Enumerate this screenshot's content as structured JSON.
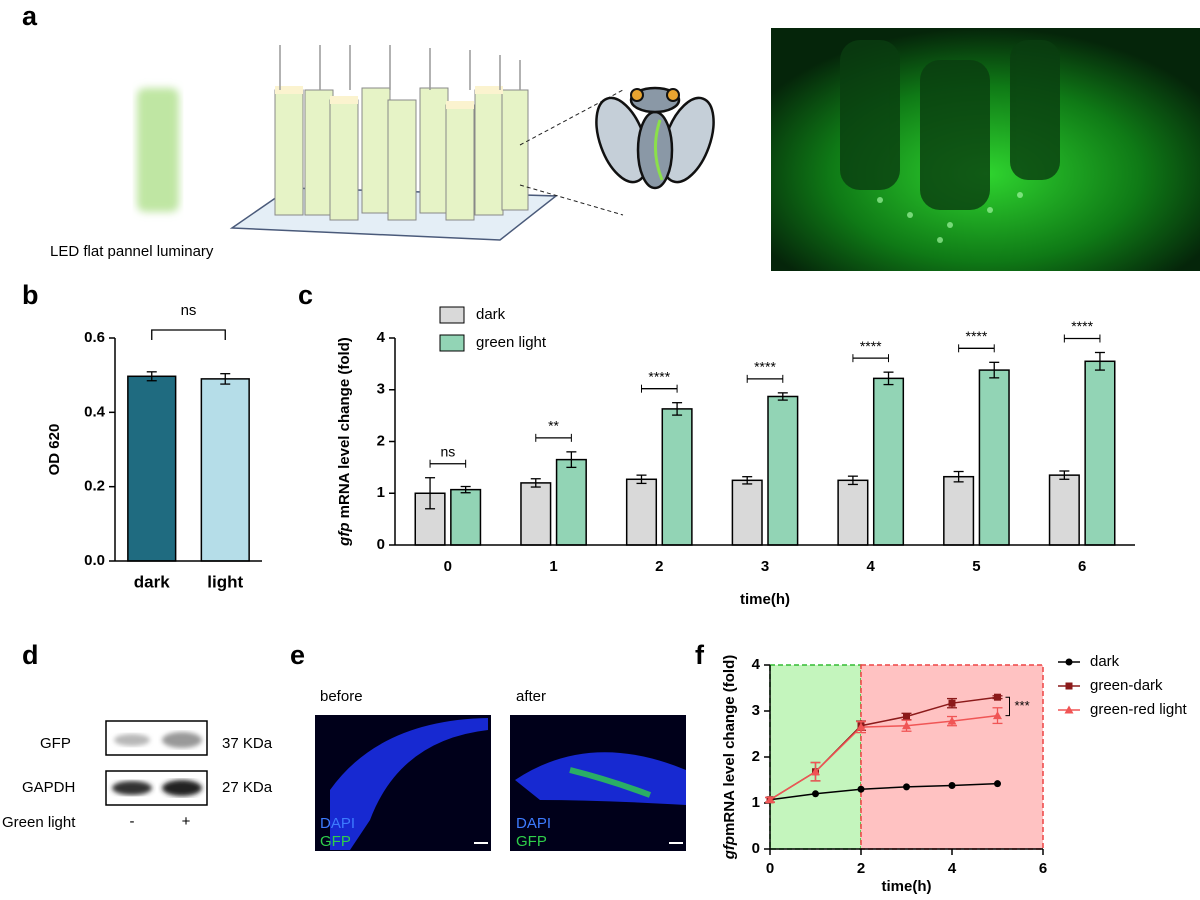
{
  "panel_labels": [
    "a",
    "b",
    "c",
    "d",
    "e",
    "f"
  ],
  "panel_a": {
    "caption": "LED flat pannel luminary"
  },
  "panel_d": {
    "rows": [
      {
        "label": "GFP",
        "size": "37 KDa"
      },
      {
        "label": "GAPDH",
        "size": "27 KDa"
      }
    ],
    "condition": "Green light",
    "lanes": [
      "-",
      "+"
    ]
  },
  "panel_e": {
    "images": [
      {
        "title": "before",
        "stains": [
          "DAPI",
          "GFP"
        ]
      },
      {
        "title": "after",
        "stains": [
          "DAPI",
          "GFP"
        ]
      }
    ]
  },
  "chart_data": [
    {
      "type": "bar",
      "categories": [
        "dark",
        "light"
      ],
      "values": [
        0.497,
        0.49
      ],
      "errors": [
        0.012,
        0.014
      ],
      "colors": [
        "#1f6b80",
        "#b5dde8"
      ],
      "y_label": "OD 620",
      "ylim": [
        0,
        0.6
      ],
      "yticks": [
        {
          "value": 0,
          "label": "0.0"
        },
        0.2,
        0.4,
        0.6
      ],
      "annotation": "ns"
    },
    {
      "type": "bar",
      "categories": [
        "0",
        "1",
        "2",
        "3",
        "4",
        "5",
        "6"
      ],
      "series": [
        {
          "name": "dark",
          "color": "#d9d9d9",
          "values": [
            1.0,
            1.2,
            1.27,
            1.25,
            1.25,
            1.32,
            1.35
          ],
          "errors": [
            0.3,
            0.08,
            0.08,
            0.07,
            0.08,
            0.1,
            0.08
          ]
        },
        {
          "name": "green light",
          "color": "#92d4b5",
          "values": [
            1.07,
            1.65,
            2.63,
            2.87,
            3.22,
            3.38,
            3.55
          ],
          "errors": [
            0.06,
            0.15,
            0.12,
            0.07,
            0.12,
            0.15,
            0.17
          ]
        }
      ],
      "annotations": [
        "ns",
        "**",
        "****",
        "****",
        "****",
        "****",
        "****"
      ],
      "x_label": "time(h)",
      "y_label": {
        "gene": "gfp",
        "text": " mRNA level change (fold)"
      },
      "ylim": [
        0,
        4
      ],
      "yticks": [
        0,
        1,
        2,
        3,
        4
      ]
    },
    {
      "type": "line",
      "x": [
        0,
        1,
        2,
        3,
        4,
        5
      ],
      "series": [
        {
          "name": "dark",
          "color": "#000000",
          "marker": "circle",
          "values": [
            1.07,
            1.2,
            1.3,
            1.35,
            1.38,
            1.42
          ]
        },
        {
          "name": "green-dark",
          "color": "#8b1a1a",
          "marker": "square",
          "values": [
            1.07,
            1.68,
            2.68,
            2.88,
            3.17,
            3.3
          ],
          "errors": [
            0.05,
            0.2,
            0.1,
            0.07,
            0.1,
            0.03
          ]
        },
        {
          "name": "green-red light",
          "color": "#f05555",
          "marker": "triangle",
          "values": [
            1.07,
            1.68,
            2.65,
            2.68,
            2.78,
            2.9
          ],
          "errors": [
            0.05,
            0.2,
            0.12,
            0.12,
            0.1,
            0.17
          ]
        }
      ],
      "regions": [
        {
          "xlim": [
            0,
            2
          ],
          "color": "#c4f5bd",
          "border": "#33bb33"
        },
        {
          "xlim": [
            2,
            6
          ],
          "color": "#ffc2c2",
          "border": "#ee4444"
        }
      ],
      "annotation": "***",
      "x_label": "time(h)",
      "y_label": {
        "gene": "gfp",
        "text": "mRNA level change (fold)"
      },
      "xlim": [
        0,
        6
      ],
      "xticks": [
        0,
        2,
        4,
        6
      ],
      "ylim": [
        0,
        4
      ],
      "yticks": [
        0,
        1,
        2,
        3,
        4
      ]
    }
  ]
}
